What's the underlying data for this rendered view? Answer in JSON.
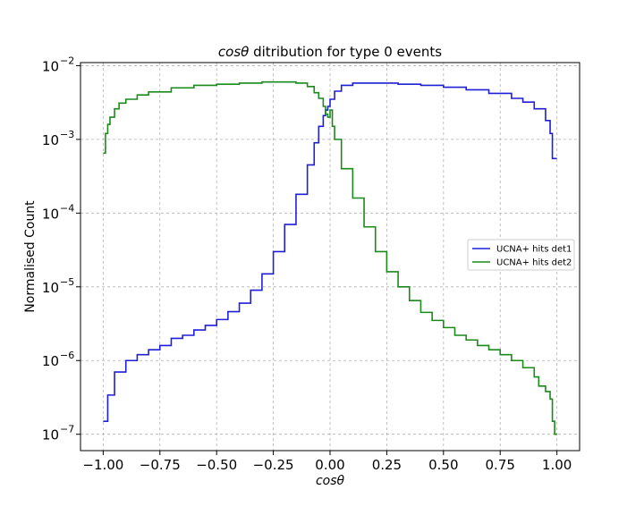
{
  "chart_data": {
    "type": "line",
    "style": "step histogram",
    "title_italic": "cosθ",
    "title_rest": " ditribution for type 0 events",
    "xlabel": "cosθ",
    "ylabel": "Normalised Count",
    "xlim": [
      -1.1,
      1.1
    ],
    "ylim": [
      6e-08,
      0.011
    ],
    "yscale": "log",
    "grid": true,
    "legend_position": "center-right",
    "x_ticks": [
      "−1.00",
      "−0.75",
      "−0.50",
      "−0.25",
      "0.00",
      "0.25",
      "0.50",
      "0.75",
      "1.00"
    ],
    "x_tick_values": [
      -1.0,
      -0.75,
      -0.5,
      -0.25,
      0.0,
      0.25,
      0.5,
      0.75,
      1.0
    ],
    "y_tick_exponents": [
      "−7",
      "−6",
      "−5",
      "−4",
      "−3",
      "−2"
    ],
    "y_tick_values": [
      1e-07,
      1e-06,
      1e-05,
      0.0001,
      0.001,
      0.01
    ],
    "y_tick_base": "10",
    "series": [
      {
        "name": "UCNA+ hits det1",
        "color": "#1f1fd6",
        "x": [
          -1.0,
          -0.98,
          -0.95,
          -0.9,
          -0.85,
          -0.8,
          -0.75,
          -0.7,
          -0.65,
          -0.6,
          -0.55,
          -0.5,
          -0.45,
          -0.4,
          -0.35,
          -0.3,
          -0.25,
          -0.2,
          -0.15,
          -0.1,
          -0.07,
          -0.05,
          -0.03,
          -0.02,
          -0.01,
          0.0,
          0.02,
          0.05,
          0.1,
          0.15,
          0.2,
          0.3,
          0.4,
          0.5,
          0.6,
          0.7,
          0.8,
          0.85,
          0.9,
          0.95,
          0.97,
          0.98,
          0.99
        ],
        "y": [
          1.5e-07,
          3.4e-07,
          7e-07,
          1e-06,
          1.2e-06,
          1.4e-06,
          1.6e-06,
          2e-06,
          2.2e-06,
          2.6e-06,
          3e-06,
          3.6e-06,
          4.6e-06,
          6e-06,
          9e-06,
          1.5e-05,
          3e-05,
          7e-05,
          0.00018,
          0.00045,
          0.0009,
          0.0015,
          0.0021,
          0.0025,
          0.0028,
          0.0035,
          0.0045,
          0.0054,
          0.0058,
          0.0058,
          0.0058,
          0.0056,
          0.0054,
          0.0051,
          0.0047,
          0.0042,
          0.0036,
          0.0032,
          0.0026,
          0.0018,
          0.0012,
          0.00055,
          0.00055
        ]
      },
      {
        "name": "UCNA+ hits det2",
        "color": "#1a8a1a",
        "x": [
          -1.0,
          -0.99,
          -0.98,
          -0.97,
          -0.95,
          -0.93,
          -0.9,
          -0.85,
          -0.8,
          -0.7,
          -0.6,
          -0.5,
          -0.4,
          -0.3,
          -0.2,
          -0.15,
          -0.1,
          -0.07,
          -0.05,
          -0.03,
          -0.02,
          -0.01,
          0.0,
          0.01,
          0.02,
          0.05,
          0.1,
          0.15,
          0.2,
          0.25,
          0.3,
          0.35,
          0.4,
          0.45,
          0.5,
          0.55,
          0.6,
          0.65,
          0.7,
          0.75,
          0.8,
          0.85,
          0.9,
          0.92,
          0.95,
          0.97,
          0.98,
          0.99
        ],
        "y": [
          0.00065,
          0.0012,
          0.0016,
          0.002,
          0.0026,
          0.0031,
          0.0035,
          0.004,
          0.0044,
          0.005,
          0.0054,
          0.0056,
          0.0058,
          0.006,
          0.006,
          0.0058,
          0.0052,
          0.0043,
          0.0036,
          0.0028,
          0.0022,
          0.002,
          0.0025,
          0.0015,
          0.001,
          0.0004,
          0.00016,
          6.5e-05,
          3e-05,
          1.6e-05,
          1e-05,
          6.5e-06,
          4.5e-06,
          3.5e-06,
          2.8e-06,
          2.2e-06,
          1.9e-06,
          1.6e-06,
          1.4e-06,
          1.2e-06,
          1e-06,
          8e-07,
          6e-07,
          4.5e-07,
          3.8e-07,
          3e-07,
          1.5e-07,
          1e-07
        ]
      }
    ]
  }
}
